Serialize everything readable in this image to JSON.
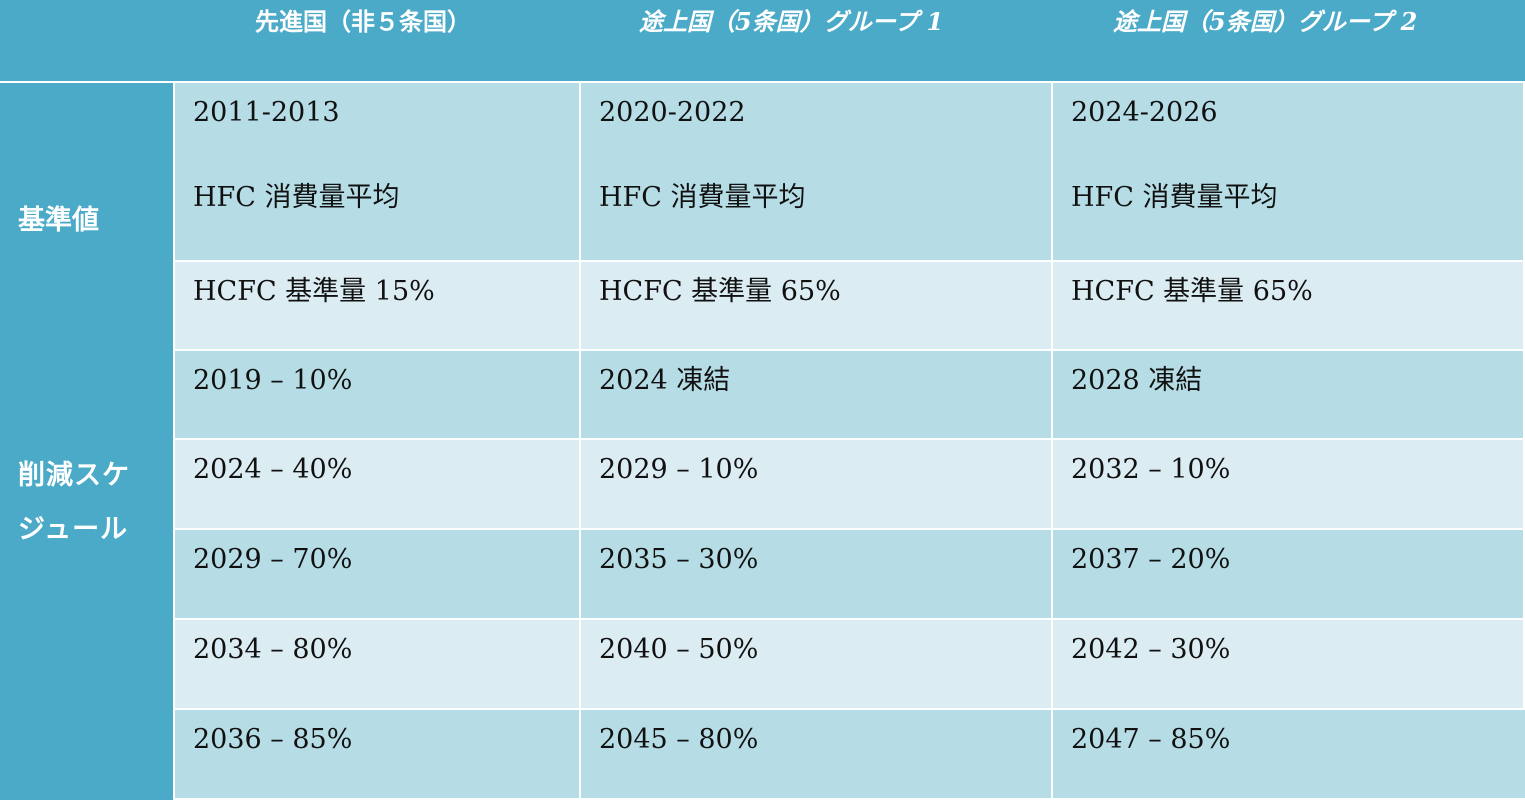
{
  "header": {
    "corner": "",
    "col1": "先進国（非５条国）",
    "col2": "途上国（5条国）グループ 1",
    "col3": "途上国（5条国）グループ 2"
  },
  "rows": {
    "baseline_label": "基準値",
    "schedule_label": "削減スケジュール"
  },
  "baseline": {
    "period": [
      "2011-2013",
      "2020-2022",
      "2024-2026"
    ],
    "hfc": [
      "HFC 消費量平均",
      "HFC 消費量平均",
      "HFC 消費量平均"
    ],
    "hcfc": [
      "HCFC 基準量 15%",
      "HCFC 基準量 65%",
      "HCFC 基準量 65%"
    ]
  },
  "schedule": [
    [
      "2019 – 10%",
      "2024 凍結",
      "2028 凍結"
    ],
    [
      "2024 – 40%",
      "2029 – 10%",
      "2032 – 10%"
    ],
    [
      "2029 – 70%",
      "2035 – 30%",
      "2037 – 20%"
    ],
    [
      "2034 – 80%",
      "2040 – 50%",
      "2042 – 30%"
    ],
    [
      "2036 – 85%",
      "2045 – 80%",
      "2047 – 85%"
    ]
  ],
  "colors": {
    "header_bg": "#4aaac8",
    "row_dark": "#b6dde6",
    "row_light": "#dcecf3",
    "border": "#ffffff"
  }
}
